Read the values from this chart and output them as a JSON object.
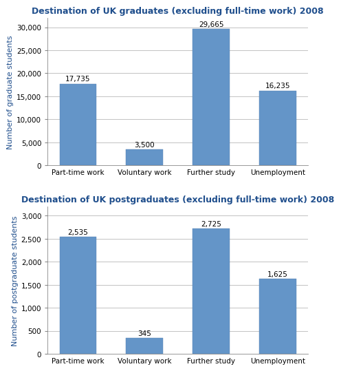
{
  "grad_title": "Destination of UK graduates (excluding full-time work) 2008",
  "postgrad_title": "Destination of UK postgraduates (excluding full-time work) 2008",
  "categories": [
    "Part-time work",
    "Voluntary work",
    "Further study",
    "Unemployment"
  ],
  "grad_values": [
    17735,
    3500,
    29665,
    16235
  ],
  "postgrad_values": [
    2535,
    345,
    2725,
    1625
  ],
  "grad_labels": [
    "17,735",
    "3,500",
    "29,665",
    "16,235"
  ],
  "postgrad_labels": [
    "2,535",
    "345",
    "2,725",
    "1,625"
  ],
  "bar_color": "#6495C8",
  "grad_ylabel": "Number of graduate students",
  "postgrad_ylabel": "Number of postgraduate students",
  "grad_ylim": [
    0,
    32000
  ],
  "postgrad_ylim": [
    0,
    3200
  ],
  "grad_yticks": [
    0,
    5000,
    10000,
    15000,
    20000,
    25000,
    30000
  ],
  "postgrad_yticks": [
    0,
    500,
    1000,
    1500,
    2000,
    2500,
    3000
  ],
  "title_color": "#1F4E8C",
  "ylabel_color": "#1F4E8C",
  "title_fontsize": 9,
  "label_fontsize": 7.5,
  "ylabel_fontsize": 8,
  "xtick_fontsize": 7.5,
  "ytick_fontsize": 7.5,
  "background_color": "#FFFFFF",
  "grid_color": "#AAAAAA",
  "spine_color": "#888888"
}
